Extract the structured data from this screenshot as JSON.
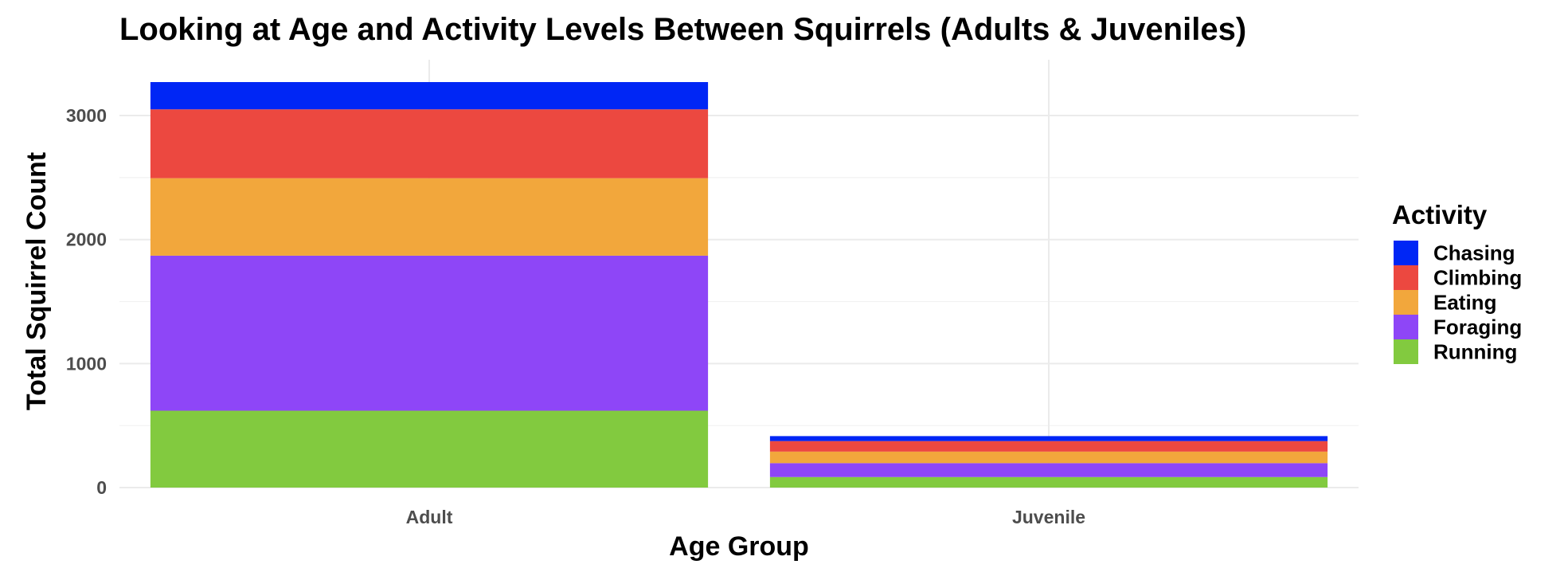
{
  "chart_data": {
    "type": "bar",
    "stacked": true,
    "title": "Looking at Age and Activity Levels Between Squirrels (Adults & Juveniles)",
    "xlabel": "Age Group",
    "ylabel": "Total Squirrel Count",
    "categories": [
      "Adult",
      "Juvenile"
    ],
    "ylim": [
      0,
      3450
    ],
    "yticks": [
      0,
      1000,
      2000,
      3000
    ],
    "grid": true,
    "legend": {
      "title": "Activity",
      "position": "right"
    },
    "series": [
      {
        "name": "Running",
        "color": "#82CA3F",
        "values": [
          620,
          85
        ]
      },
      {
        "name": "Foraging",
        "color": "#8E46F7",
        "values": [
          1250,
          112
        ]
      },
      {
        "name": "Eating",
        "color": "#F2A73C",
        "values": [
          625,
          93
        ]
      },
      {
        "name": "Climbing",
        "color": "#EC4840",
        "values": [
          555,
          85
        ]
      },
      {
        "name": "Chasing",
        "color": "#0026F5",
        "values": [
          220,
          40
        ]
      }
    ]
  }
}
